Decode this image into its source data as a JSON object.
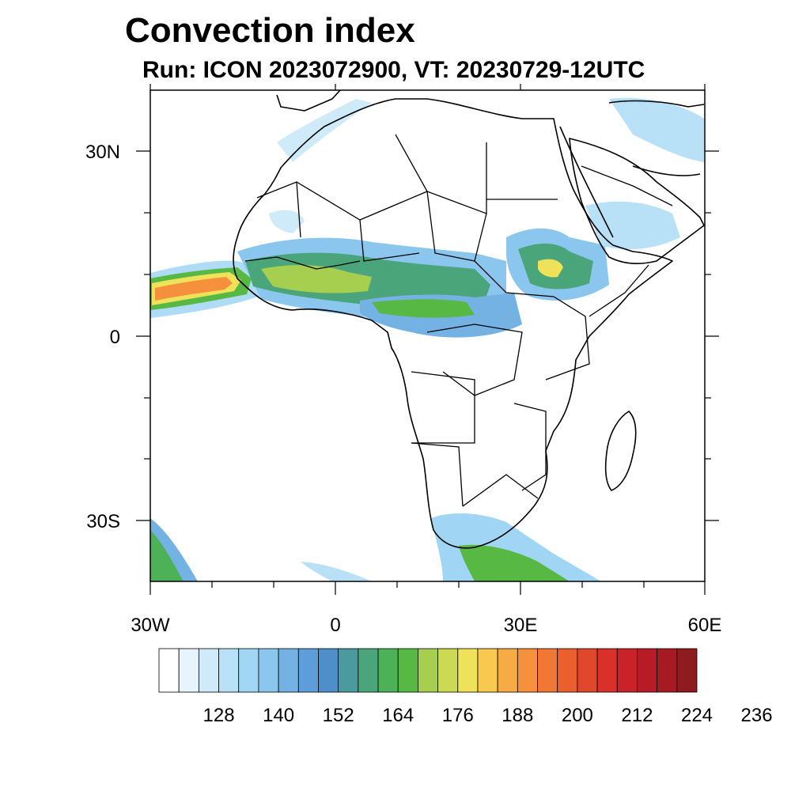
{
  "title": "Convection index",
  "subtitle": "Run: ICON 2023072900,  VT: 20230729-12UTC",
  "axes": {
    "lon_labels": [
      "30W",
      "0",
      "30E",
      "60E"
    ],
    "lat_labels": [
      "30N",
      "0",
      "30S"
    ]
  },
  "colorbar": {
    "colors": [
      "#ffffff",
      "#e6f4fc",
      "#cfeaf9",
      "#b8e0f7",
      "#a0d6f4",
      "#8ac6ee",
      "#74b2e4",
      "#5d9dd9",
      "#4e8fc9",
      "#4a9a9e",
      "#4aa67a",
      "#4db257",
      "#58b844",
      "#a7cf4f",
      "#cbd955",
      "#efe25b",
      "#f9c94f",
      "#f7ab45",
      "#f5913c",
      "#f07834",
      "#e9602e",
      "#e0472b",
      "#d93129",
      "#c92228",
      "#b71b25",
      "#a61a22",
      "#8e1b1e"
    ],
    "tick_labels": [
      "128",
      "140",
      "152",
      "164",
      "176",
      "188",
      "200",
      "212",
      "224",
      "236"
    ]
  }
}
